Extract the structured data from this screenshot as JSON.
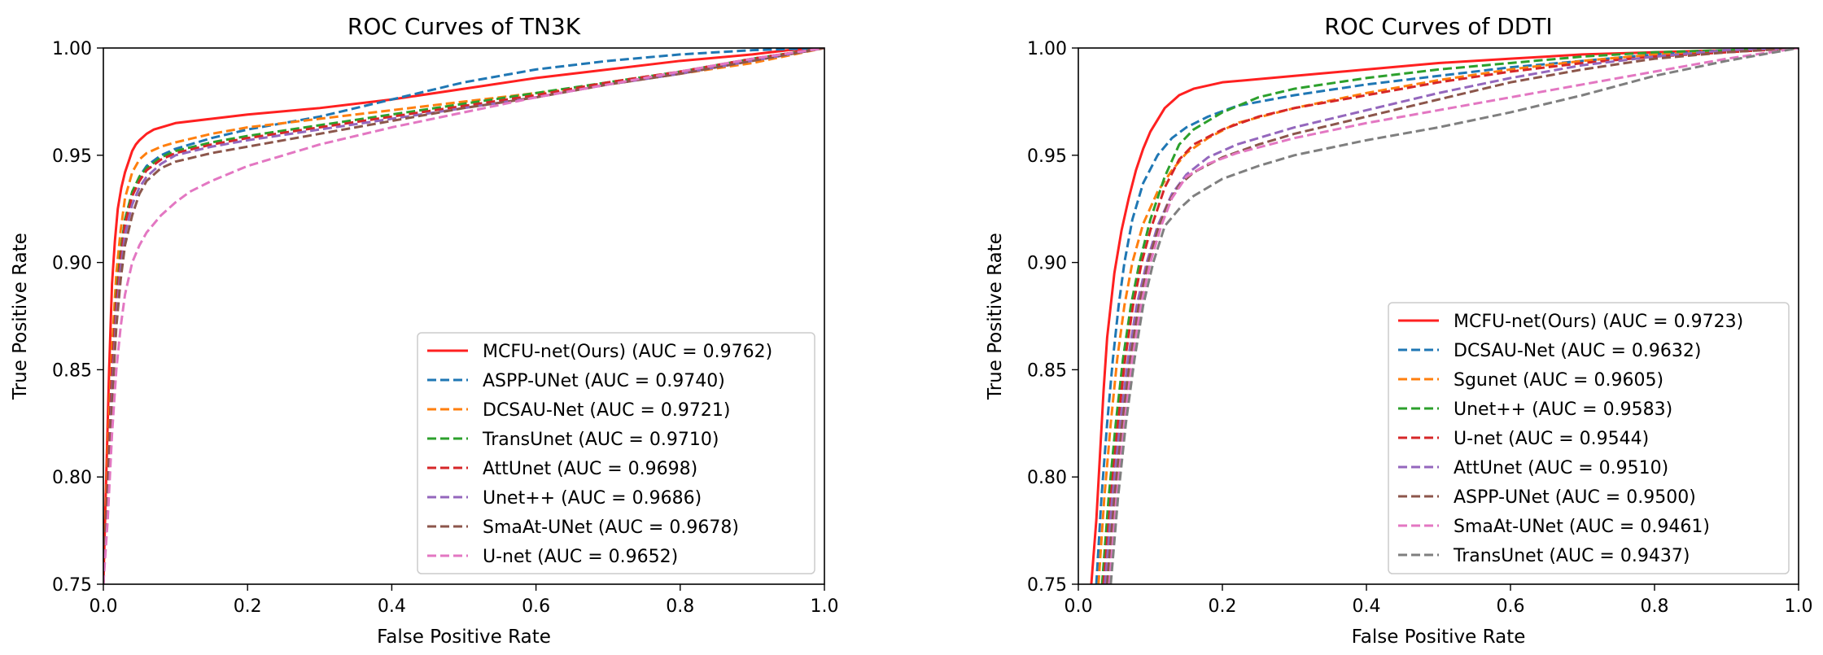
{
  "chart_data": [
    {
      "type": "line",
      "title": "ROC Curves of TN3K",
      "xlabel": "False Positive Rate",
      "ylabel": "True Positive Rate",
      "xlim": [
        0.0,
        1.0
      ],
      "ylim": [
        0.75,
        1.0
      ],
      "xticks": [
        "0.0",
        "0.2",
        "0.4",
        "0.6",
        "0.8",
        "1.0"
      ],
      "yticks": [
        "0.75",
        "0.80",
        "0.85",
        "0.90",
        "0.95",
        "1.00"
      ],
      "grid": false,
      "legend_position": "lower-right",
      "series": [
        {
          "name": "MCFU-net(Ours) (AUC = 0.9762)",
          "color": "#ff2020",
          "dashed": false,
          "x": [
            0.0,
            0.004,
            0.008,
            0.012,
            0.016,
            0.02,
            0.025,
            0.03,
            0.035,
            0.04,
            0.045,
            0.05,
            0.06,
            0.07,
            0.08,
            0.1,
            0.15,
            0.2,
            0.3,
            0.4,
            0.5,
            0.6,
            0.7,
            0.8,
            0.9,
            0.95,
            1.0
          ],
          "y": [
            0.75,
            0.8,
            0.85,
            0.89,
            0.91,
            0.925,
            0.935,
            0.942,
            0.947,
            0.952,
            0.955,
            0.957,
            0.96,
            0.962,
            0.963,
            0.965,
            0.967,
            0.969,
            0.972,
            0.976,
            0.981,
            0.986,
            0.99,
            0.994,
            0.997,
            0.999,
            1.0
          ]
        },
        {
          "name": "ASPP-UNet (AUC = 0.9740)",
          "color": "#1f77b4",
          "dashed": true,
          "x": [
            0.0,
            0.006,
            0.012,
            0.018,
            0.024,
            0.03,
            0.04,
            0.05,
            0.06,
            0.08,
            0.1,
            0.15,
            0.2,
            0.3,
            0.4,
            0.5,
            0.6,
            0.7,
            0.8,
            0.9,
            1.0
          ],
          "y": [
            0.75,
            0.8,
            0.85,
            0.885,
            0.905,
            0.92,
            0.932,
            0.94,
            0.945,
            0.95,
            0.953,
            0.958,
            0.962,
            0.968,
            0.976,
            0.984,
            0.99,
            0.994,
            0.997,
            0.999,
            1.0
          ]
        },
        {
          "name": "DCSAU-Net (AUC = 0.9721)",
          "color": "#ff7f0e",
          "dashed": true,
          "x": [
            0.0,
            0.006,
            0.012,
            0.018,
            0.024,
            0.03,
            0.04,
            0.05,
            0.06,
            0.08,
            0.1,
            0.15,
            0.2,
            0.3,
            0.4,
            0.5,
            0.6,
            0.7,
            0.8,
            0.9,
            1.0
          ],
          "y": [
            0.75,
            0.81,
            0.86,
            0.895,
            0.915,
            0.93,
            0.942,
            0.948,
            0.951,
            0.954,
            0.956,
            0.96,
            0.963,
            0.967,
            0.971,
            0.975,
            0.979,
            0.983,
            0.988,
            0.993,
            1.0
          ]
        },
        {
          "name": "TransUnet (AUC = 0.9710)",
          "color": "#2ca02c",
          "dashed": true,
          "x": [
            0.0,
            0.006,
            0.012,
            0.018,
            0.024,
            0.03,
            0.04,
            0.05,
            0.06,
            0.08,
            0.1,
            0.15,
            0.2,
            0.3,
            0.4,
            0.5,
            0.6,
            0.7,
            0.8,
            0.9,
            1.0
          ],
          "y": [
            0.75,
            0.8,
            0.85,
            0.885,
            0.905,
            0.92,
            0.933,
            0.94,
            0.944,
            0.949,
            0.952,
            0.956,
            0.959,
            0.964,
            0.969,
            0.974,
            0.979,
            0.984,
            0.989,
            0.995,
            1.0
          ]
        },
        {
          "name": "AttUnet (AUC = 0.9698)",
          "color": "#d62728",
          "dashed": true,
          "x": [
            0.0,
            0.006,
            0.012,
            0.018,
            0.024,
            0.03,
            0.04,
            0.05,
            0.06,
            0.08,
            0.1,
            0.15,
            0.2,
            0.3,
            0.4,
            0.5,
            0.6,
            0.7,
            0.8,
            0.9,
            1.0
          ],
          "y": [
            0.75,
            0.8,
            0.85,
            0.882,
            0.902,
            0.918,
            0.931,
            0.938,
            0.943,
            0.948,
            0.951,
            0.955,
            0.958,
            0.963,
            0.968,
            0.973,
            0.978,
            0.984,
            0.989,
            0.995,
            1.0
          ]
        },
        {
          "name": "Unet++ (AUC = 0.9686)",
          "color": "#9467bd",
          "dashed": true,
          "x": [
            0.0,
            0.006,
            0.012,
            0.018,
            0.024,
            0.03,
            0.04,
            0.05,
            0.06,
            0.08,
            0.1,
            0.15,
            0.2,
            0.3,
            0.4,
            0.5,
            0.6,
            0.7,
            0.8,
            0.9,
            1.0
          ],
          "y": [
            0.75,
            0.79,
            0.84,
            0.875,
            0.897,
            0.913,
            0.927,
            0.935,
            0.94,
            0.946,
            0.95,
            0.954,
            0.957,
            0.962,
            0.967,
            0.972,
            0.977,
            0.983,
            0.988,
            0.994,
            1.0
          ]
        },
        {
          "name": "SmaAt-UNet (AUC = 0.9678)",
          "color": "#8c564b",
          "dashed": true,
          "x": [
            0.0,
            0.006,
            0.012,
            0.018,
            0.024,
            0.03,
            0.04,
            0.05,
            0.06,
            0.08,
            0.1,
            0.15,
            0.2,
            0.3,
            0.4,
            0.5,
            0.6,
            0.7,
            0.8,
            0.9,
            1.0
          ],
          "y": [
            0.75,
            0.79,
            0.835,
            0.87,
            0.892,
            0.908,
            0.922,
            0.932,
            0.938,
            0.944,
            0.947,
            0.951,
            0.954,
            0.96,
            0.966,
            0.972,
            0.977,
            0.983,
            0.988,
            0.994,
            1.0
          ]
        },
        {
          "name": "U-net (AUC = 0.9652)",
          "color": "#e377c2",
          "dashed": true,
          "x": [
            0.0,
            0.006,
            0.012,
            0.018,
            0.024,
            0.03,
            0.04,
            0.05,
            0.06,
            0.08,
            0.1,
            0.12,
            0.15,
            0.2,
            0.3,
            0.4,
            0.5,
            0.6,
            0.7,
            0.8,
            0.9,
            1.0
          ],
          "y": [
            0.75,
            0.78,
            0.82,
            0.85,
            0.87,
            0.885,
            0.9,
            0.908,
            0.914,
            0.922,
            0.928,
            0.933,
            0.938,
            0.945,
            0.955,
            0.963,
            0.97,
            0.977,
            0.983,
            0.989,
            0.995,
            1.0
          ]
        }
      ]
    },
    {
      "type": "line",
      "title": "ROC Curves of DDTI",
      "xlabel": "False Positive Rate",
      "ylabel": "True Positive Rate",
      "xlim": [
        0.0,
        1.0
      ],
      "ylim": [
        0.75,
        1.0
      ],
      "xticks": [
        "0.0",
        "0.2",
        "0.4",
        "0.6",
        "0.8",
        "1.0"
      ],
      "yticks": [
        "0.75",
        "0.80",
        "0.85",
        "0.90",
        "0.95",
        "1.00"
      ],
      "grid": false,
      "legend_position": "lower-right",
      "series": [
        {
          "name": "MCFU-net(Ours) (AUC = 0.9723)",
          "color": "#ff2020",
          "dashed": false,
          "x": [
            0.018,
            0.025,
            0.03,
            0.035,
            0.04,
            0.05,
            0.06,
            0.07,
            0.08,
            0.09,
            0.1,
            0.12,
            0.14,
            0.16,
            0.2,
            0.3,
            0.4,
            0.5,
            0.6,
            0.7,
            0.8,
            0.9,
            1.0
          ],
          "y": [
            0.75,
            0.78,
            0.81,
            0.84,
            0.865,
            0.895,
            0.915,
            0.93,
            0.943,
            0.953,
            0.961,
            0.972,
            0.978,
            0.981,
            0.984,
            0.987,
            0.99,
            0.993,
            0.995,
            0.997,
            0.998,
            0.999,
            1.0
          ]
        },
        {
          "name": "DCSAU-Net (AUC = 0.9632)",
          "color": "#1f77b4",
          "dashed": true,
          "x": [
            0.025,
            0.032,
            0.04,
            0.048,
            0.056,
            0.064,
            0.075,
            0.09,
            0.11,
            0.13,
            0.15,
            0.18,
            0.22,
            0.3,
            0.4,
            0.5,
            0.6,
            0.7,
            0.8,
            0.9,
            1.0
          ],
          "y": [
            0.75,
            0.79,
            0.825,
            0.855,
            0.88,
            0.9,
            0.92,
            0.937,
            0.95,
            0.958,
            0.963,
            0.968,
            0.973,
            0.978,
            0.983,
            0.987,
            0.991,
            0.994,
            0.997,
            0.999,
            1.0
          ]
        },
        {
          "name": "Sgunet (AUC = 0.9605)",
          "color": "#ff7f0e",
          "dashed": true,
          "x": [
            0.028,
            0.036,
            0.045,
            0.054,
            0.064,
            0.075,
            0.09,
            0.11,
            0.13,
            0.15,
            0.18,
            0.22,
            0.3,
            0.4,
            0.5,
            0.6,
            0.7,
            0.8,
            0.9,
            1.0
          ],
          "y": [
            0.75,
            0.79,
            0.825,
            0.855,
            0.88,
            0.9,
            0.918,
            0.933,
            0.943,
            0.951,
            0.958,
            0.965,
            0.972,
            0.979,
            0.985,
            0.99,
            0.994,
            0.997,
            0.999,
            1.0
          ]
        },
        {
          "name": "Unet++ (AUC = 0.9583)",
          "color": "#2ca02c",
          "dashed": true,
          "x": [
            0.033,
            0.042,
            0.052,
            0.062,
            0.073,
            0.085,
            0.1,
            0.12,
            0.14,
            0.16,
            0.2,
            0.25,
            0.3,
            0.4,
            0.5,
            0.6,
            0.7,
            0.8,
            0.9,
            1.0
          ],
          "y": [
            0.75,
            0.79,
            0.825,
            0.855,
            0.88,
            0.9,
            0.92,
            0.94,
            0.955,
            0.962,
            0.97,
            0.977,
            0.981,
            0.986,
            0.99,
            0.993,
            0.996,
            0.998,
            0.999,
            1.0
          ]
        },
        {
          "name": "U-net (AUC = 0.9544)",
          "color": "#d62728",
          "dashed": true,
          "x": [
            0.035,
            0.045,
            0.055,
            0.065,
            0.076,
            0.088,
            0.1,
            0.12,
            0.14,
            0.16,
            0.2,
            0.25,
            0.3,
            0.4,
            0.5,
            0.6,
            0.7,
            0.8,
            0.9,
            1.0
          ],
          "y": [
            0.75,
            0.79,
            0.825,
            0.855,
            0.88,
            0.9,
            0.915,
            0.935,
            0.948,
            0.955,
            0.962,
            0.968,
            0.972,
            0.978,
            0.984,
            0.989,
            0.993,
            0.996,
            0.998,
            1.0
          ]
        },
        {
          "name": "AttUnet (AUC = 0.9510)",
          "color": "#9467bd",
          "dashed": true,
          "x": [
            0.037,
            0.047,
            0.058,
            0.069,
            0.081,
            0.095,
            0.11,
            0.13,
            0.15,
            0.18,
            0.22,
            0.3,
            0.4,
            0.5,
            0.6,
            0.7,
            0.8,
            0.9,
            1.0
          ],
          "y": [
            0.75,
            0.79,
            0.825,
            0.855,
            0.88,
            0.9,
            0.917,
            0.932,
            0.941,
            0.949,
            0.955,
            0.963,
            0.971,
            0.979,
            0.986,
            0.992,
            0.996,
            0.999,
            1.0
          ]
        },
        {
          "name": "ASPP-UNet (AUC = 0.9500)",
          "color": "#8c564b",
          "dashed": true,
          "x": [
            0.04,
            0.05,
            0.061,
            0.072,
            0.084,
            0.097,
            0.11,
            0.125,
            0.14,
            0.16,
            0.2,
            0.25,
            0.3,
            0.4,
            0.5,
            0.6,
            0.7,
            0.8,
            0.9,
            1.0
          ],
          "y": [
            0.75,
            0.79,
            0.825,
            0.855,
            0.88,
            0.9,
            0.915,
            0.928,
            0.936,
            0.942,
            0.949,
            0.955,
            0.96,
            0.968,
            0.976,
            0.984,
            0.99,
            0.995,
            0.998,
            1.0
          ]
        },
        {
          "name": "SmaAt-UNet (AUC = 0.9461)",
          "color": "#e377c2",
          "dashed": true,
          "x": [
            0.043,
            0.053,
            0.064,
            0.075,
            0.087,
            0.1,
            0.115,
            0.13,
            0.15,
            0.18,
            0.22,
            0.3,
            0.4,
            0.5,
            0.6,
            0.7,
            0.8,
            0.9,
            1.0
          ],
          "y": [
            0.75,
            0.79,
            0.825,
            0.855,
            0.88,
            0.9,
            0.917,
            0.93,
            0.94,
            0.946,
            0.951,
            0.958,
            0.965,
            0.971,
            0.977,
            0.983,
            0.989,
            0.995,
            1.0
          ]
        },
        {
          "name": "TransUnet (AUC = 0.9437)",
          "color": "#7f7f7f",
          "dashed": true,
          "x": [
            0.045,
            0.055,
            0.066,
            0.078,
            0.09,
            0.104,
            0.12,
            0.14,
            0.16,
            0.2,
            0.25,
            0.3,
            0.4,
            0.5,
            0.6,
            0.7,
            0.8,
            0.9,
            1.0
          ],
          "y": [
            0.75,
            0.79,
            0.825,
            0.855,
            0.88,
            0.9,
            0.917,
            0.925,
            0.931,
            0.939,
            0.945,
            0.95,
            0.957,
            0.963,
            0.97,
            0.978,
            0.987,
            0.994,
            1.0
          ]
        }
      ]
    }
  ]
}
